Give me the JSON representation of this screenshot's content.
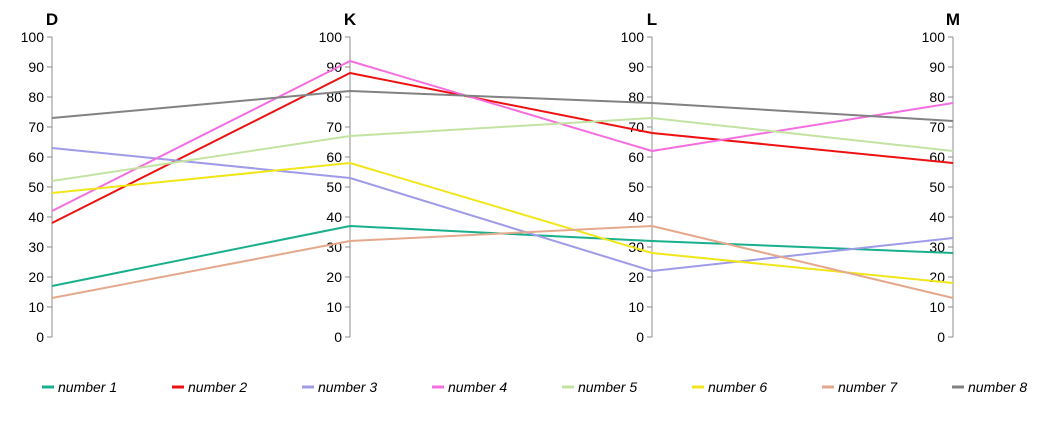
{
  "chart_data": {
    "type": "parallel-coordinates",
    "axes": [
      "D",
      "K",
      "L",
      "M"
    ],
    "ylim": [
      0,
      100
    ],
    "ticks": [
      0,
      10,
      20,
      30,
      40,
      50,
      60,
      70,
      80,
      90,
      100
    ],
    "legend_position": "bottom",
    "series": [
      {
        "name": "number 1",
        "color": "#1aaf8c",
        "values": [
          17,
          37,
          32,
          28
        ]
      },
      {
        "name": "number 2",
        "color": "#ee1111",
        "values": [
          38,
          88,
          68,
          58
        ]
      },
      {
        "name": "number 3",
        "color": "#9f9be8",
        "values": [
          63,
          53,
          22,
          33
        ]
      },
      {
        "name": "number 4",
        "color": "#f46ee0",
        "values": [
          42,
          92,
          62,
          78
        ]
      },
      {
        "name": "number 5",
        "color": "#c3e3a3",
        "values": [
          52,
          67,
          73,
          62
        ]
      },
      {
        "name": "number 6",
        "color": "#f0e61a",
        "values": [
          48,
          58,
          28,
          18
        ]
      },
      {
        "name": "number 7",
        "color": "#e4a98c",
        "values": [
          13,
          32,
          37,
          13
        ]
      },
      {
        "name": "number 8",
        "color": "#828282",
        "values": [
          73,
          82,
          78,
          72
        ]
      }
    ]
  }
}
